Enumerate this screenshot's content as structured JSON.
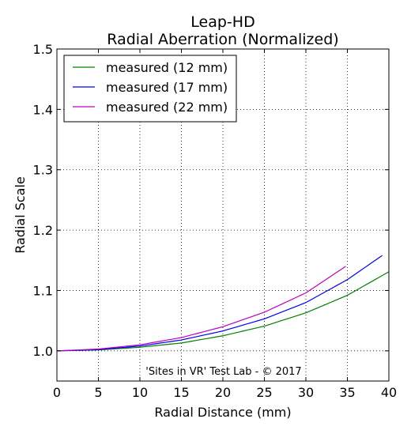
{
  "chart_data": {
    "type": "line",
    "title": "Leap-HD",
    "subtitle": "Radial Aberration (Normalized)",
    "xlabel": "Radial Distance (mm)",
    "ylabel": "Radial Scale",
    "annotation": "'Sites in VR' Test Lab - © 2017",
    "xlim": [
      0,
      40
    ],
    "ylim": [
      0.95,
      1.5
    ],
    "xticks": [
      0,
      5,
      10,
      15,
      20,
      25,
      30,
      35,
      40
    ],
    "xtick_labels": [
      "0",
      "5",
      "10",
      "15",
      "20",
      "25",
      "30",
      "35",
      "40"
    ],
    "yticks": [
      1.0,
      1.1,
      1.2,
      1.3,
      1.4,
      1.5
    ],
    "ytick_labels": [
      "1.0",
      "1.1",
      "1.2",
      "1.3",
      "1.4",
      "1.5"
    ],
    "grid": true,
    "legend_position": "top-left",
    "series": [
      {
        "name": "measured (12 mm)",
        "color": "#008000",
        "x": [
          0,
          5,
          10,
          15,
          20,
          25,
          30,
          35,
          40
        ],
        "y": [
          1.0,
          1.0015,
          1.006,
          1.013,
          1.025,
          1.041,
          1.063,
          1.092,
          1.131
        ]
      },
      {
        "name": "measured (17 mm)",
        "color": "#0000ff",
        "x": [
          0,
          5,
          10,
          15,
          20,
          25,
          30,
          35,
          39.2
        ],
        "y": [
          1.0,
          1.002,
          1.008,
          1.018,
          1.033,
          1.053,
          1.08,
          1.118,
          1.158
        ]
      },
      {
        "name": "measured (22 mm)",
        "color": "#bf00bf",
        "x": [
          0,
          5,
          10,
          15,
          20,
          25,
          30,
          34.8
        ],
        "y": [
          1.0,
          1.003,
          1.01,
          1.022,
          1.04,
          1.064,
          1.096,
          1.14
        ]
      }
    ]
  }
}
